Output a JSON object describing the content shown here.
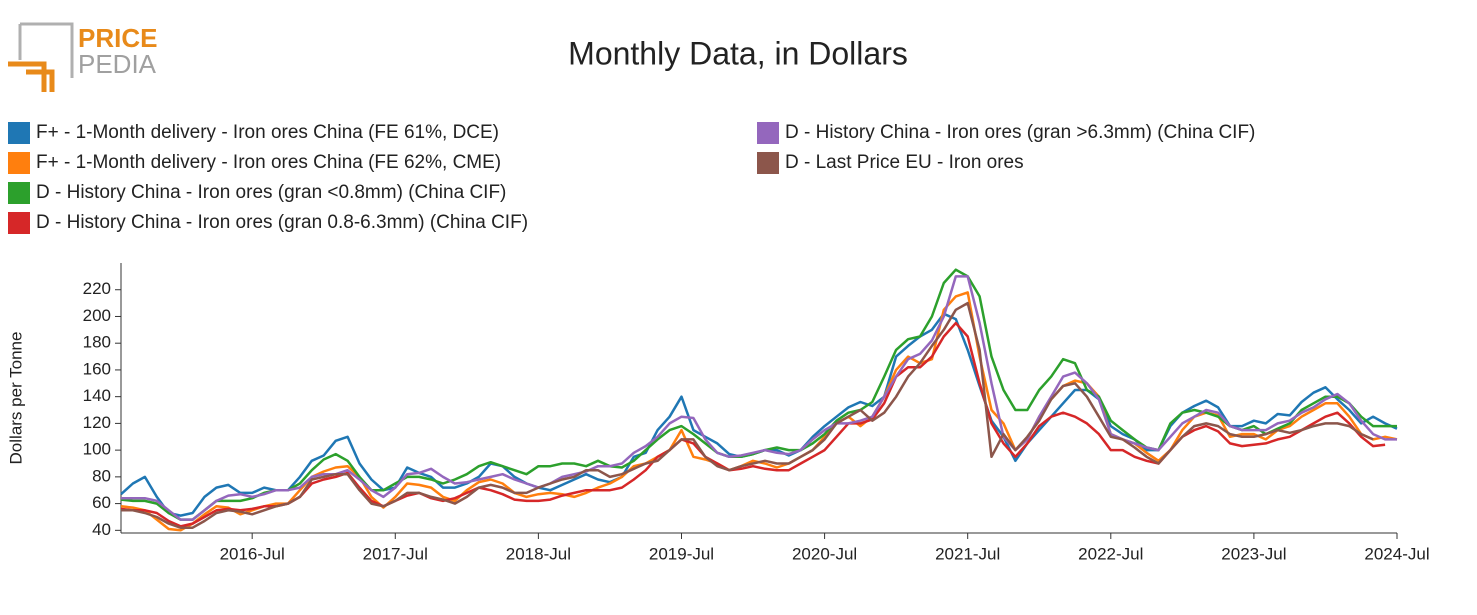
{
  "logo": {
    "line1": "PRICE",
    "line2": "PEDIA"
  },
  "chart_data": {
    "type": "line",
    "title": "Monthly Data, in Dollars",
    "y_label": "Dollars per Tonne",
    "x": [
      "2015-08",
      "2015-09",
      "2015-10",
      "2015-11",
      "2015-12",
      "2016-01",
      "2016-02",
      "2016-03",
      "2016-04",
      "2016-05",
      "2016-06",
      "2016-07",
      "2016-08",
      "2016-09",
      "2016-10",
      "2016-11",
      "2016-12",
      "2017-01",
      "2017-02",
      "2017-03",
      "2017-04",
      "2017-05",
      "2017-06",
      "2017-07",
      "2017-08",
      "2017-09",
      "2017-10",
      "2017-11",
      "2017-12",
      "2018-01",
      "2018-02",
      "2018-03",
      "2018-04",
      "2018-05",
      "2018-06",
      "2018-07",
      "2018-08",
      "2018-09",
      "2018-10",
      "2018-11",
      "2018-12",
      "2019-01",
      "2019-02",
      "2019-03",
      "2019-04",
      "2019-05",
      "2019-06",
      "2019-07",
      "2019-08",
      "2019-09",
      "2019-10",
      "2019-11",
      "2019-12",
      "2020-01",
      "2020-02",
      "2020-03",
      "2020-04",
      "2020-05",
      "2020-06",
      "2020-07",
      "2020-08",
      "2020-09",
      "2020-10",
      "2020-11",
      "2020-12",
      "2021-01",
      "2021-02",
      "2021-03",
      "2021-04",
      "2021-05",
      "2021-06",
      "2021-07",
      "2021-08",
      "2021-09",
      "2021-10",
      "2021-11",
      "2021-12",
      "2022-01",
      "2022-02",
      "2022-03",
      "2022-04",
      "2022-05",
      "2022-06",
      "2022-07",
      "2022-08",
      "2022-09",
      "2022-10",
      "2022-11",
      "2022-12",
      "2023-01",
      "2023-02",
      "2023-03",
      "2023-04",
      "2023-05",
      "2023-06",
      "2023-07",
      "2023-08",
      "2023-09",
      "2023-10",
      "2023-11",
      "2023-12",
      "2024-01",
      "2024-02",
      "2024-03",
      "2024-04",
      "2024-05",
      "2024-06",
      "2024-07"
    ],
    "xlim": [
      "2015-08",
      "2024-07"
    ],
    "xticks": [
      {
        "value": "2016-07",
        "label": "2016-Jul"
      },
      {
        "value": "2017-07",
        "label": "2017-Jul"
      },
      {
        "value": "2018-07",
        "label": "2018-Jul"
      },
      {
        "value": "2019-07",
        "label": "2019-Jul"
      },
      {
        "value": "2020-07",
        "label": "2020-Jul"
      },
      {
        "value": "2021-07",
        "label": "2021-Jul"
      },
      {
        "value": "2022-07",
        "label": "2022-Jul"
      },
      {
        "value": "2023-07",
        "label": "2023-Jul"
      },
      {
        "value": "2024-07",
        "label": "2024-Jul"
      }
    ],
    "ylim": [
      38,
      240
    ],
    "yticks": [
      40,
      60,
      80,
      100,
      120,
      140,
      160,
      180,
      200,
      220
    ],
    "series": [
      {
        "name": "F+ - 1-Month delivery - Iron ores China (FE 61%, DCE)",
        "color": "#1f77b4",
        "values": [
          67,
          75,
          80,
          65,
          53,
          51,
          53,
          65,
          72,
          74,
          68,
          68,
          72,
          70,
          70,
          80,
          92,
          96,
          107,
          110,
          90,
          78,
          70,
          72,
          87,
          83,
          80,
          72,
          72,
          75,
          80,
          90,
          88,
          80,
          75,
          72,
          70,
          74,
          78,
          82,
          78,
          76,
          80,
          95,
          98,
          115,
          125,
          140,
          115,
          110,
          105,
          97,
          95,
          97,
          100,
          100,
          96,
          100,
          110,
          118,
          125,
          132,
          136,
          133,
          140,
          170,
          178,
          185,
          190,
          202,
          198,
          175,
          148,
          122,
          110,
          92,
          105,
          115,
          125,
          135,
          145,
          145,
          138,
          118,
          112,
          108,
          100,
          100,
          118,
          128,
          133,
          137,
          132,
          118,
          118,
          122,
          120,
          127,
          126,
          136,
          143,
          147,
          138,
          130,
          120,
          125,
          120,
          116
        ]
      },
      {
        "name": "F+ - 1-Month delivery - Iron ores China (FE 62%, CME)",
        "color": "#ff7f0e",
        "values": [
          58,
          57,
          55,
          48,
          41,
          40,
          45,
          52,
          58,
          57,
          52,
          55,
          58,
          60,
          60,
          70,
          80,
          84,
          87,
          88,
          80,
          65,
          57,
          65,
          75,
          74,
          72,
          65,
          62,
          70,
          76,
          78,
          75,
          68,
          65,
          67,
          68,
          67,
          65,
          68,
          72,
          75,
          80,
          88,
          90,
          95,
          100,
          115,
          95,
          93,
          90,
          85,
          88,
          92,
          90,
          87,
          90,
          95,
          100,
          110,
          120,
          125,
          118,
          125,
          140,
          160,
          170,
          165,
          168,
          205,
          215,
          218,
          170,
          130,
          120,
          100,
          108,
          125,
          138,
          148,
          152,
          150,
          140,
          112,
          108,
          105,
          98,
          92,
          100,
          115,
          125,
          128,
          126,
          110,
          112,
          112,
          108,
          115,
          118,
          125,
          130,
          135,
          135,
          125,
          112,
          108,
          110,
          108
        ]
      },
      {
        "name": "D - History China - Iron ores (gran <0.8mm) (China CIF)",
        "color": "#2ca02c",
        "values": [
          63,
          62,
          62,
          60,
          53,
          48,
          48,
          55,
          62,
          62,
          62,
          64,
          68,
          70,
          70,
          75,
          85,
          93,
          97,
          92,
          80,
          70,
          70,
          75,
          80,
          80,
          78,
          75,
          78,
          82,
          88,
          91,
          88,
          85,
          82,
          88,
          88,
          90,
          90,
          88,
          92,
          88,
          87,
          92,
          100,
          108,
          115,
          118,
          112,
          105,
          98,
          95,
          95,
          97,
          100,
          102,
          100,
          100,
          105,
          112,
          122,
          128,
          130,
          136,
          155,
          175,
          183,
          185,
          200,
          225,
          235,
          230,
          215,
          170,
          145,
          130,
          130,
          145,
          155,
          168,
          165,
          145,
          140,
          122,
          115,
          108,
          102,
          100,
          120,
          128,
          130,
          128,
          125,
          118,
          115,
          118,
          112,
          116,
          120,
          130,
          135,
          140,
          140,
          135,
          125,
          118,
          118,
          118
        ]
      },
      {
        "name": "D - History China - Iron ores (gran 0.8-6.3mm) (China CIF)",
        "color": "#d62728",
        "values": [
          56,
          55,
          55,
          53,
          47,
          43,
          45,
          50,
          55,
          56,
          55,
          56,
          58,
          58,
          60,
          65,
          75,
          78,
          80,
          83,
          72,
          62,
          58,
          62,
          66,
          68,
          64,
          62,
          64,
          68,
          72,
          70,
          67,
          63,
          62,
          62,
          63,
          66,
          68,
          70,
          70,
          70,
          72,
          78,
          85,
          95,
          100,
          108,
          105,
          95,
          90,
          85,
          86,
          88,
          86,
          85,
          85,
          90,
          95,
          100,
          110,
          120,
          120,
          123,
          135,
          155,
          162,
          162,
          170,
          185,
          195,
          185,
          150,
          120,
          105,
          95,
          105,
          118,
          125,
          128,
          125,
          120,
          112,
          100,
          100,
          95,
          92,
          90,
          100,
          110,
          115,
          118,
          114,
          105,
          103,
          104,
          105,
          108,
          110,
          115,
          120,
          125,
          128,
          120,
          110,
          103,
          104,
          null
        ]
      },
      {
        "name": "D - History China - Iron ores (gran >6.3mm) (China CIF)",
        "color": "#9467bd",
        "values": [
          64,
          64,
          64,
          62,
          55,
          48,
          48,
          55,
          62,
          66,
          67,
          65,
          67,
          70,
          70,
          72,
          80,
          82,
          82,
          85,
          78,
          70,
          65,
          72,
          82,
          83,
          86,
          80,
          75,
          76,
          78,
          80,
          82,
          78,
          75,
          72,
          75,
          80,
          82,
          84,
          88,
          88,
          90,
          98,
          103,
          110,
          120,
          125,
          124,
          108,
          98,
          95,
          96,
          98,
          100,
          98,
          97,
          100,
          108,
          115,
          120,
          120,
          122,
          125,
          140,
          155,
          168,
          172,
          182,
          200,
          230,
          230,
          195,
          150,
          110,
          100,
          108,
          125,
          140,
          155,
          158,
          150,
          138,
          112,
          108,
          105,
          102,
          100,
          110,
          120,
          125,
          130,
          128,
          118,
          115,
          115,
          115,
          120,
          122,
          128,
          132,
          138,
          142,
          135,
          122,
          112,
          108,
          108
        ]
      },
      {
        "name": "D - Last Price EU - Iron ores",
        "color": "#8c564b",
        "values": [
          55,
          55,
          53,
          50,
          45,
          42,
          42,
          47,
          53,
          55,
          54,
          52,
          55,
          58,
          60,
          65,
          78,
          80,
          82,
          82,
          70,
          60,
          58,
          62,
          68,
          68,
          65,
          63,
          60,
          65,
          72,
          74,
          72,
          68,
          68,
          72,
          75,
          78,
          80,
          85,
          85,
          80,
          82,
          86,
          90,
          92,
          100,
          108,
          108,
          95,
          88,
          85,
          88,
          90,
          92,
          90,
          90,
          95,
          100,
          108,
          120,
          125,
          130,
          122,
          128,
          140,
          155,
          165,
          178,
          190,
          205,
          210,
          175,
          95,
          112,
          100,
          110,
          122,
          138,
          148,
          150,
          140,
          125,
          110,
          108,
          102,
          95,
          90,
          100,
          110,
          118,
          120,
          118,
          112,
          110,
          110,
          112,
          115,
          113,
          115,
          118,
          120,
          120,
          118,
          112,
          108,
          null,
          null
        ]
      }
    ]
  }
}
